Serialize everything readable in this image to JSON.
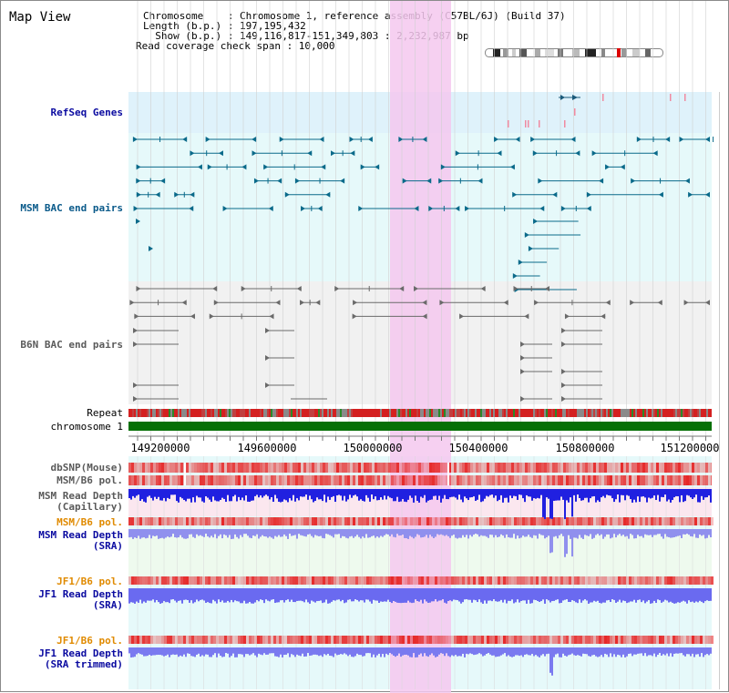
{
  "title": "Map View",
  "info": {
    "chromosome_line": "Chromosome    : Chromosome 1, reference assembly (C57BL/6J) (Build 37)",
    "length_line": "Length (b.p.) : 197,195,432",
    "show_line": "  Show (b.p.) : 149,116,817-151,349,803 : 2,232,987 bp",
    "coverage_line": "Read coverage check span : 10,000"
  },
  "tracks": {
    "refseq": "RefSeq Genes",
    "msm_bac": "MSM BAC end pairs",
    "b6n_bac": "B6N BAC end pairs",
    "repeat": "Repeat",
    "chromosome": "chromosome 1",
    "dbsnp": "dbSNP(Mouse)",
    "msm_b6_pol": "MSM/B6 pol.",
    "msm_read_depth_cap_1": "MSM Read Depth",
    "msm_read_depth_cap_2": "(Capillary)",
    "msm_b6_pol_2": "MSM/B6 pol.",
    "msm_read_depth_sra_1": "MSM Read Depth",
    "msm_read_depth_sra_2": "(SRA)",
    "jf1_b6_pol": "JF1/B6 pol.",
    "jf1_read_depth_sra_1": "JF1 Read Depth",
    "jf1_read_depth_sra_2": "(SRA)",
    "jf1_b6_pol_2": "JF1/B6 pol.",
    "jf1_read_depth_trim_1": "JF1 Read Depth",
    "jf1_read_depth_trim_2": "(SRA trimmed)"
  },
  "axis_ticks": [
    "149200000",
    "149600000",
    "150000000",
    "150400000",
    "150800000",
    "151200000"
  ],
  "colors": {
    "label_blue": "#0a0aa0",
    "label_teal": "#0a5a8a",
    "label_orange": "#e08a00",
    "highlight": "#f5c8ee",
    "chromosome": "#067006",
    "refseq_bg": "#dff2fb",
    "msm_bg": "#e6f9fa",
    "b6n_bg": "#f1f1f1"
  }
}
